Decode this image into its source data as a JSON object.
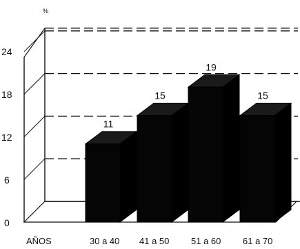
{
  "chart_data": {
    "type": "bar",
    "title": "",
    "unit_label": "%",
    "xlabel": "AÑOS",
    "ylabel": "",
    "categories": [
      "30 a 40",
      "41 a 50",
      "51 a 60",
      "61 a 70"
    ],
    "values": [
      11,
      15,
      19,
      15
    ],
    "data_labels": [
      "11",
      "15",
      "19",
      "15"
    ],
    "yticks": [
      "0",
      "6",
      "12",
      "18",
      "24"
    ],
    "ylim": [
      0,
      24
    ],
    "grid": true,
    "three_d": true,
    "bar_color": "#000000"
  }
}
